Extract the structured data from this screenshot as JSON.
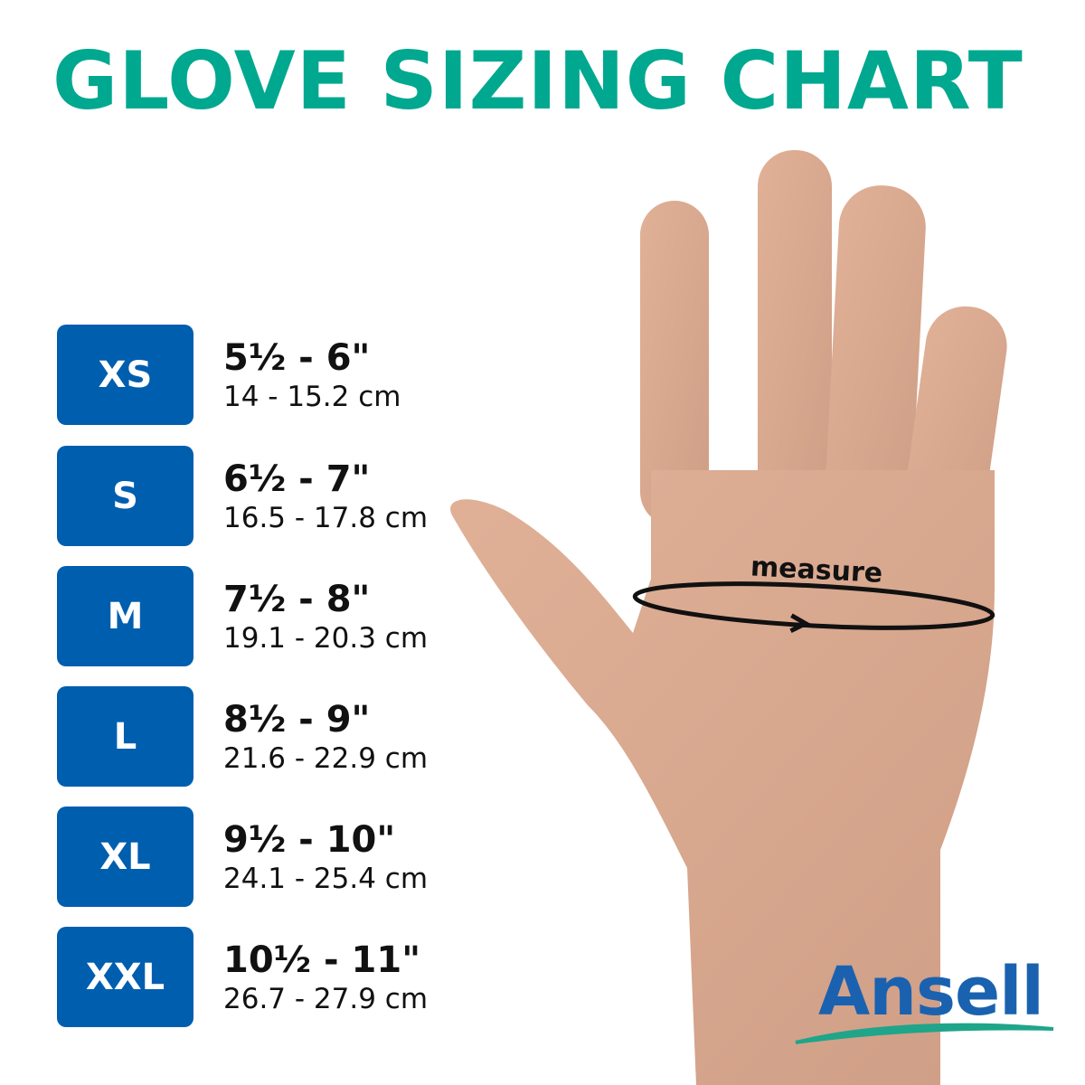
{
  "title": "GLOVE SIZING CHART",
  "measure_label": "measure",
  "sizes": [
    {
      "size": "XS",
      "inches": "5½ - 6\"",
      "cm": "14 - 15.2 cm"
    },
    {
      "size": "S",
      "inches": "6½ - 7\"",
      "cm": "16.5 - 17.8 cm"
    },
    {
      "size": "M",
      "inches": "7½ - 8\"",
      "cm": "19.1 - 20.3 cm"
    },
    {
      "size": "L",
      "inches": "8½ - 9\"",
      "cm": "21.6 - 22.9 cm"
    },
    {
      "size": "XL",
      "inches": "9½ - 10\"",
      "cm": "24.1 - 25.4 cm"
    },
    {
      "size": "XXL",
      "inches": "10½ - 11\"",
      "cm": "26.7 - 27.9 cm"
    }
  ],
  "brand": "Ansell",
  "colors": {
    "title": "#00a88f",
    "size_box": "#005eaf",
    "brand": "#1a62b0",
    "brand_swoosh": "#1fa58a"
  }
}
